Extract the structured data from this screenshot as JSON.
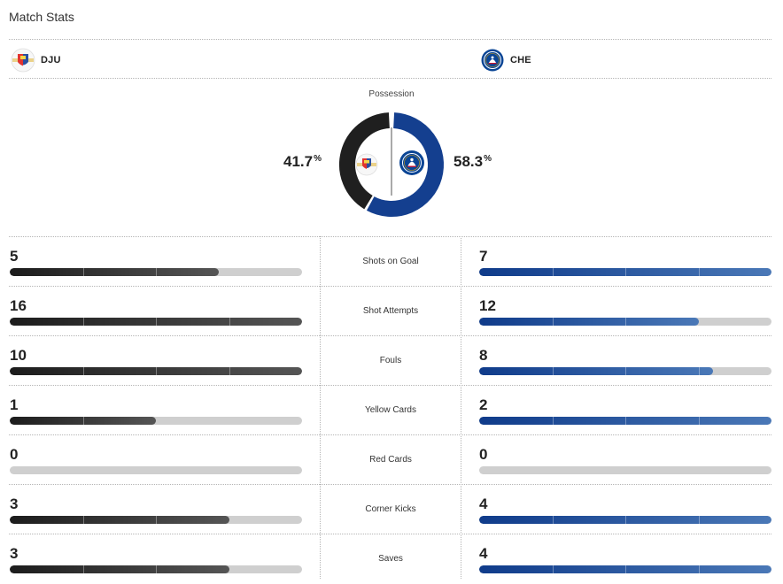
{
  "header": {
    "title": "Match Stats"
  },
  "teams": {
    "home": {
      "abbr": "DJU",
      "color": "#1f1f1f"
    },
    "away": {
      "abbr": "CHE",
      "color": "#143f8f"
    }
  },
  "possession": {
    "label": "Possession",
    "home_value": 41.7,
    "away_value": 58.3,
    "home_text": "41.7",
    "away_text": "58.3",
    "unit": "%"
  },
  "stats": [
    {
      "name": "Shots on Goal",
      "home": "5",
      "away": "7",
      "home_frac": 0.714,
      "away_frac": 1.0
    },
    {
      "name": "Shot Attempts",
      "home": "16",
      "away": "12",
      "home_frac": 1.0,
      "away_frac": 0.75
    },
    {
      "name": "Fouls",
      "home": "10",
      "away": "8",
      "home_frac": 1.0,
      "away_frac": 0.8
    },
    {
      "name": "Yellow Cards",
      "home": "1",
      "away": "2",
      "home_frac": 0.5,
      "away_frac": 1.0
    },
    {
      "name": "Red Cards",
      "home": "0",
      "away": "0",
      "home_frac": 0.0,
      "away_frac": 0.0
    },
    {
      "name": "Corner Kicks",
      "home": "3",
      "away": "4",
      "home_frac": 0.75,
      "away_frac": 1.0
    },
    {
      "name": "Saves",
      "home": "3",
      "away": "4",
      "home_frac": 0.75,
      "away_frac": 1.0
    }
  ]
}
